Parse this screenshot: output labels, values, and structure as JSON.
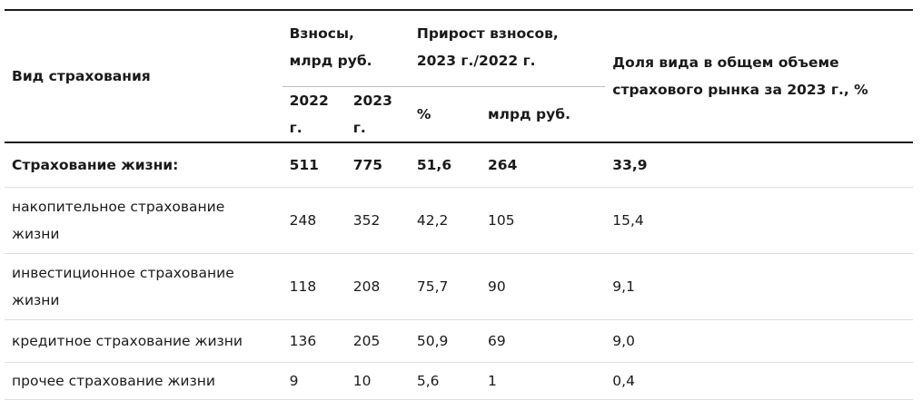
{
  "header": {
    "col_type": "Вид страхования",
    "premiums_group": "Взносы, млрд руб.",
    "growth_group": "Прирост взносов, 2023 г./2022 г.",
    "share": "Доля вида в общем объеме страхового рынка за 2023 г., %",
    "sub_2022": "2022 г.",
    "sub_2023": "2023 г.",
    "sub_pct": "%",
    "sub_bln": "млрд руб."
  },
  "rows": [
    {
      "type": "Страхование жизни:",
      "y2022": "511",
      "y2023": "775",
      "pct": "51,6",
      "bln": "264",
      "share": "33,9"
    },
    {
      "type": "накопительное страхование жизни",
      "y2022": "248",
      "y2023": "352",
      "pct": "42,2",
      "bln": "105",
      "share": "15,4"
    },
    {
      "type": "инвестиционное страхование жизни",
      "y2022": "118",
      "y2023": "208",
      "pct": "75,7",
      "bln": "90",
      "share": "9,1"
    },
    {
      "type": "кредитное страхование жизни",
      "y2022": "136",
      "y2023": "205",
      "pct": "50,9",
      "bln": "69",
      "share": "9,0"
    },
    {
      "type": "прочее страхование жизни",
      "y2022": "9",
      "y2023": "10",
      "pct": "5,6",
      "bln": "1",
      "share": "0,4"
    }
  ]
}
